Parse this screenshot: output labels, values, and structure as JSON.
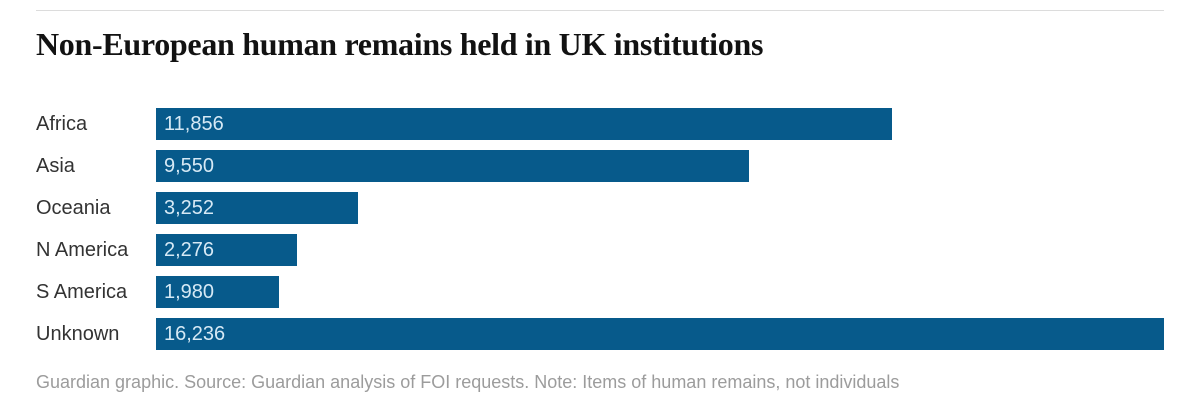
{
  "header": {
    "title": "Non-European human remains held in UK institutions"
  },
  "footer": {
    "text": "Guardian graphic. Source: Guardian analysis of FOI requests. Note: Items of human remains, not individuals"
  },
  "colors": {
    "bar": "#075a8b",
    "bar_value_text": "#d6e9f5",
    "category_label_text": "#333333",
    "title_text": "#121212",
    "divider": "#dcdcdc",
    "footer_text": "#9c9c9c",
    "background": "#ffffff"
  },
  "chart_data": {
    "type": "bar",
    "orientation": "horizontal",
    "title": "Non-European human remains held in UK institutions",
    "categories": [
      "Africa",
      "Asia",
      "Oceania",
      "N America",
      "S America",
      "Unknown"
    ],
    "values": [
      11856,
      9550,
      3252,
      2276,
      1980,
      16236
    ],
    "value_labels": [
      "11,856",
      "9,550",
      "3,252",
      "2,276",
      "1,980",
      "16,236"
    ],
    "xlim": [
      0,
      16236
    ],
    "xlabel": "",
    "ylabel": "",
    "grid": false,
    "legend": false,
    "value_label_position": "inside-start",
    "source_note": "Guardian graphic. Source: Guardian analysis of FOI requests. Note: Items of human remains, not individuals"
  }
}
